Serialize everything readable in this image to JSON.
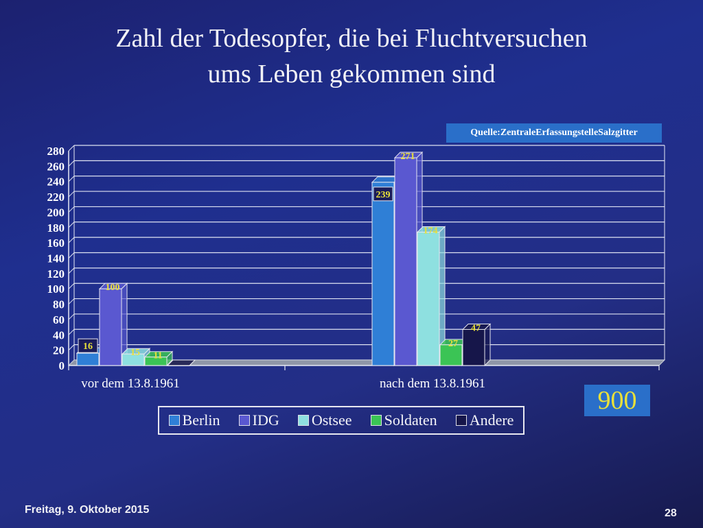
{
  "slide": {
    "title_line1": "Zahl der Todesopfer, die bei Fluchtversuchen",
    "title_line2": "ums Leben gekommen sind",
    "source": "Quelle:ZentraleErfassungstelleSalzgitter",
    "total": "900",
    "date": "Freitag, 9. Oktober 2015",
    "page_number": "28"
  },
  "chart_data": {
    "type": "bar",
    "categories": [
      "vor dem 13.8.1961",
      "nach dem 13.8.1961"
    ],
    "series": [
      {
        "name": "Berlin",
        "values": [
          16,
          239
        ],
        "color": "#2f7fd6"
      },
      {
        "name": "IDG",
        "values": [
          100,
          271
        ],
        "color": "#5a58d0"
      },
      {
        "name": "Ostsee",
        "values": [
          15,
          174
        ],
        "color": "#8ee0e0"
      },
      {
        "name": "Soldaten",
        "values": [
          11,
          27
        ],
        "color": "#3bc455"
      },
      {
        "name": "Andere",
        "values": [
          0,
          47
        ],
        "color": "#16164a"
      }
    ],
    "yticks": [
      0,
      20,
      40,
      60,
      80,
      100,
      120,
      140,
      160,
      180,
      200,
      220,
      240,
      260,
      280
    ],
    "ylim": [
      0,
      280
    ],
    "grid": true,
    "legend_position": "bottom",
    "label_color": "#e8e03a"
  }
}
